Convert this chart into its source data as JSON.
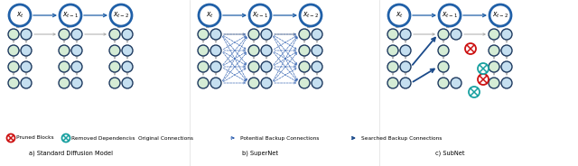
{
  "bg_color": "#ffffff",
  "node_dark": "#1e3a5f",
  "node_light_blue": "#c5dff0",
  "node_light_green": "#d5ecd5",
  "node_border_blue": "#2060a8",
  "edge_gray": "#aaaaaa",
  "edge_blue_dark": "#1a4a8a",
  "edge_blue_dashed": "#3060b0",
  "red_color": "#cc1111",
  "teal_color": "#18a0a0",
  "label_a": "a) Standard Diffusion Model",
  "label_b": "b) SuperNet",
  "label_c": "c) SubNet",
  "legend_pruned": "Pruned Blocks",
  "legend_removed": "Removed Dependences",
  "legend_original": "Original Connections",
  "legend_potential": "Potential Backup Connections",
  "legend_searched": "Searched Backup Connections"
}
